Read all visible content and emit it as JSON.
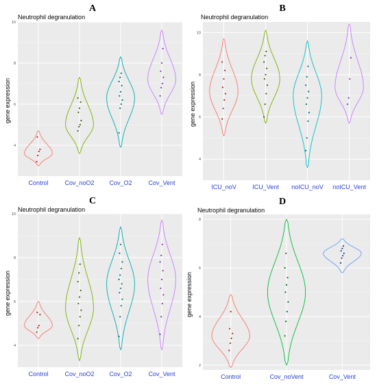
{
  "chart_data": [
    {
      "type": "violin",
      "panel": "A",
      "title": "Neutrophil degranulation",
      "ylabel": "gene expression",
      "ylim": [
        2.5,
        10
      ],
      "yticks": [
        4,
        6,
        8,
        10
      ],
      "categories": [
        "Control",
        "Cov_noO2",
        "Cov_O2",
        "Cov_Vent"
      ],
      "colors": [
        "#f8766d",
        "#7cae00",
        "#00a9b0",
        "#c77cff"
      ],
      "dot_colors": [
        "#b22222",
        "#3f5f00",
        "#006f78",
        "#7a3aa8"
      ],
      "violins": [
        {
          "ymin": 3.0,
          "ymax": 4.7,
          "mode": 3.6
        },
        {
          "ymin": 3.6,
          "ymax": 7.3,
          "mode": 5.0
        },
        {
          "ymin": 3.9,
          "ymax": 8.3,
          "mode": 6.3
        },
        {
          "ymin": 5.5,
          "ymax": 9.6,
          "mode": 7.2
        }
      ],
      "points": [
        [
          3.2,
          3.5,
          3.7,
          3.8,
          4.4
        ],
        [
          4.7,
          4.9,
          5.0,
          5.2,
          5.6,
          5.8,
          6.1,
          6.3
        ],
        [
          4.6,
          5.8,
          6.0,
          6.2,
          6.4,
          6.6,
          6.9,
          7.1,
          7.3,
          7.5
        ],
        [
          6.4,
          6.8,
          7.0,
          7.3,
          7.6,
          8.0,
          8.7
        ]
      ]
    },
    {
      "type": "violin",
      "panel": "B",
      "title": "Neutrophil degranulation",
      "ylabel": "gene expression",
      "ylim": [
        3,
        10.5
      ],
      "yticks": [
        4,
        6,
        8,
        10
      ],
      "categories": [
        "ICU_noV",
        "ICU_Vent",
        "noICU_noV",
        "noICU_Vent"
      ],
      "colors": [
        "#f8766d",
        "#7cae00",
        "#00bfc4",
        "#c77cff"
      ],
      "dot_colors": [
        "#b22222",
        "#3f5f00",
        "#006f78",
        "#7a3aa8"
      ],
      "violins": [
        {
          "ymin": 5.1,
          "ymax": 9.7,
          "mode": 7.2
        },
        {
          "ymin": 5.7,
          "ymax": 10.1,
          "mode": 7.8
        },
        {
          "ymin": 3.6,
          "ymax": 9.6,
          "mode": 7.0
        },
        {
          "ymin": 5.7,
          "ymax": 10.4,
          "mode": 7.4
        }
      ],
      "points": [
        [
          5.9,
          6.4,
          6.8,
          7.1,
          7.4,
          7.8,
          8.2,
          8.6
        ],
        [
          6.0,
          6.6,
          7.1,
          7.5,
          7.8,
          8.0,
          8.3,
          8.6,
          8.9,
          9.1
        ],
        [
          4.4,
          5.0,
          5.8,
          6.2,
          6.6,
          6.9,
          7.2,
          7.5,
          7.9,
          8.4
        ],
        [
          6.6,
          6.9,
          7.8,
          8.8
        ]
      ]
    },
    {
      "type": "violin",
      "panel": "C",
      "title": "Neutrophil degranulation",
      "ylabel": "gene expression",
      "ylim": [
        3,
        10
      ],
      "yticks": [
        4,
        6,
        8,
        10
      ],
      "categories": [
        "Control",
        "Cov_noO2",
        "Cov_O2",
        "Cov_Vent"
      ],
      "colors": [
        "#f8766d",
        "#7cae00",
        "#00a9b0",
        "#c77cff"
      ],
      "dot_colors": [
        "#b22222",
        "#3f5f00",
        "#006f78",
        "#7a3aa8"
      ],
      "violins": [
        {
          "ymin": 4.3,
          "ymax": 6.0,
          "mode": 4.9
        },
        {
          "ymin": 3.3,
          "ymax": 8.9,
          "mode": 5.7
        },
        {
          "ymin": 3.8,
          "ymax": 9.4,
          "mode": 6.8
        },
        {
          "ymin": 3.8,
          "ymax": 9.7,
          "mode": 7.0
        }
      ],
      "points": [
        [
          4.6,
          4.8,
          4.9,
          5.4,
          5.5
        ],
        [
          4.3,
          4.9,
          5.3,
          5.6,
          5.9,
          6.2,
          6.5,
          6.9,
          7.3,
          7.7
        ],
        [
          4.4,
          5.3,
          5.8,
          6.1,
          6.4,
          6.6,
          6.8,
          7.0,
          7.2,
          7.5,
          7.8,
          8.2,
          8.6
        ],
        [
          4.5,
          5.3,
          5.9,
          6.3,
          6.6,
          7.0,
          7.4,
          7.8,
          8.1,
          8.6
        ]
      ]
    },
    {
      "type": "violin",
      "panel": "D",
      "title": "Neutrophil degranulation",
      "ylabel": "gene expression",
      "ylim": [
        1.8,
        8.2
      ],
      "yticks": [
        2,
        4,
        6,
        8
      ],
      "categories": [
        "Control",
        "Cov_noVent",
        "Cov_Vent"
      ],
      "colors": [
        "#f8766d",
        "#00ba38",
        "#619cff"
      ],
      "dot_colors": [
        "#b22222",
        "#006d20",
        "#1a3a8a"
      ],
      "violins": [
        {
          "ymin": 1.9,
          "ymax": 4.9,
          "mode": 3.2
        },
        {
          "ymin": 2.0,
          "ymax": 8.0,
          "mode": 5.0
        },
        {
          "ymin": 5.8,
          "ymax": 7.2,
          "mode": 6.6
        }
      ],
      "points": [
        [
          2.6,
          2.9,
          3.1,
          3.3,
          3.5,
          4.2
        ],
        [
          3.2,
          3.8,
          4.2,
          4.6,
          5.0,
          5.3,
          5.6,
          6.0,
          6.6
        ],
        [
          6.2,
          6.4,
          6.5,
          6.6,
          6.7,
          6.8,
          6.9
        ]
      ]
    }
  ]
}
